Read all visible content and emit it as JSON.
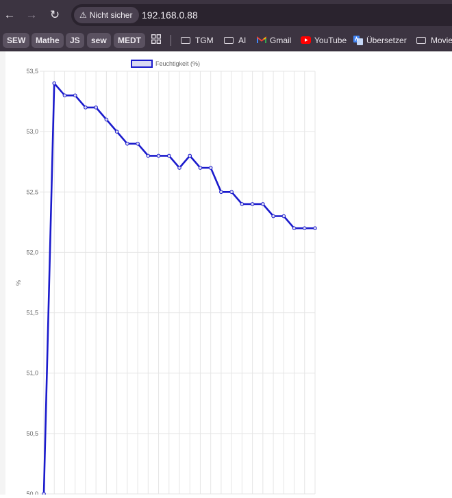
{
  "browser": {
    "nav": {
      "back_icon": "←",
      "forward_icon": "→",
      "reload_icon": "↻"
    },
    "security_label": "Nicht sicher",
    "url": "192.168.0.88"
  },
  "bookmarks": [
    {
      "label": "SEW",
      "style": "pill"
    },
    {
      "label": "Mathe",
      "style": "pill"
    },
    {
      "label": "JS",
      "style": "pill"
    },
    {
      "label": "sew",
      "style": "pill"
    },
    {
      "label": "MEDT",
      "style": "pill"
    },
    {
      "label": "TGM",
      "style": "folder"
    },
    {
      "label": "AI",
      "style": "folder"
    },
    {
      "label": "Gmail",
      "style": "gmail"
    },
    {
      "label": "YouTube",
      "style": "youtube"
    },
    {
      "label": "Übersetzer",
      "style": "translate"
    },
    {
      "label": "Movie",
      "style": "folder"
    }
  ],
  "chart_data": {
    "type": "line",
    "legend_label": "Feuchtigkeit (%)",
    "legend_position": "top",
    "ylabel": "%",
    "ylim": [
      50,
      53.5
    ],
    "yticks": [
      "53,5",
      "53,0",
      "52,5",
      "52,0",
      "51,5",
      "51,0",
      "50,5",
      "50,0"
    ],
    "grid": true,
    "line_color": "#1a1acc",
    "fill_color": "#d9d9f2",
    "series": [
      {
        "values": [
          50.0,
          53.4,
          53.3,
          53.3,
          53.2,
          53.2,
          53.1,
          53.0,
          52.9,
          52.9,
          52.8,
          52.8,
          52.8,
          52.7,
          52.8,
          52.7,
          52.7,
          52.5,
          52.5,
          52.4,
          52.4,
          52.4,
          52.3,
          52.3,
          52.2,
          52.2,
          52.2
        ]
      }
    ]
  }
}
